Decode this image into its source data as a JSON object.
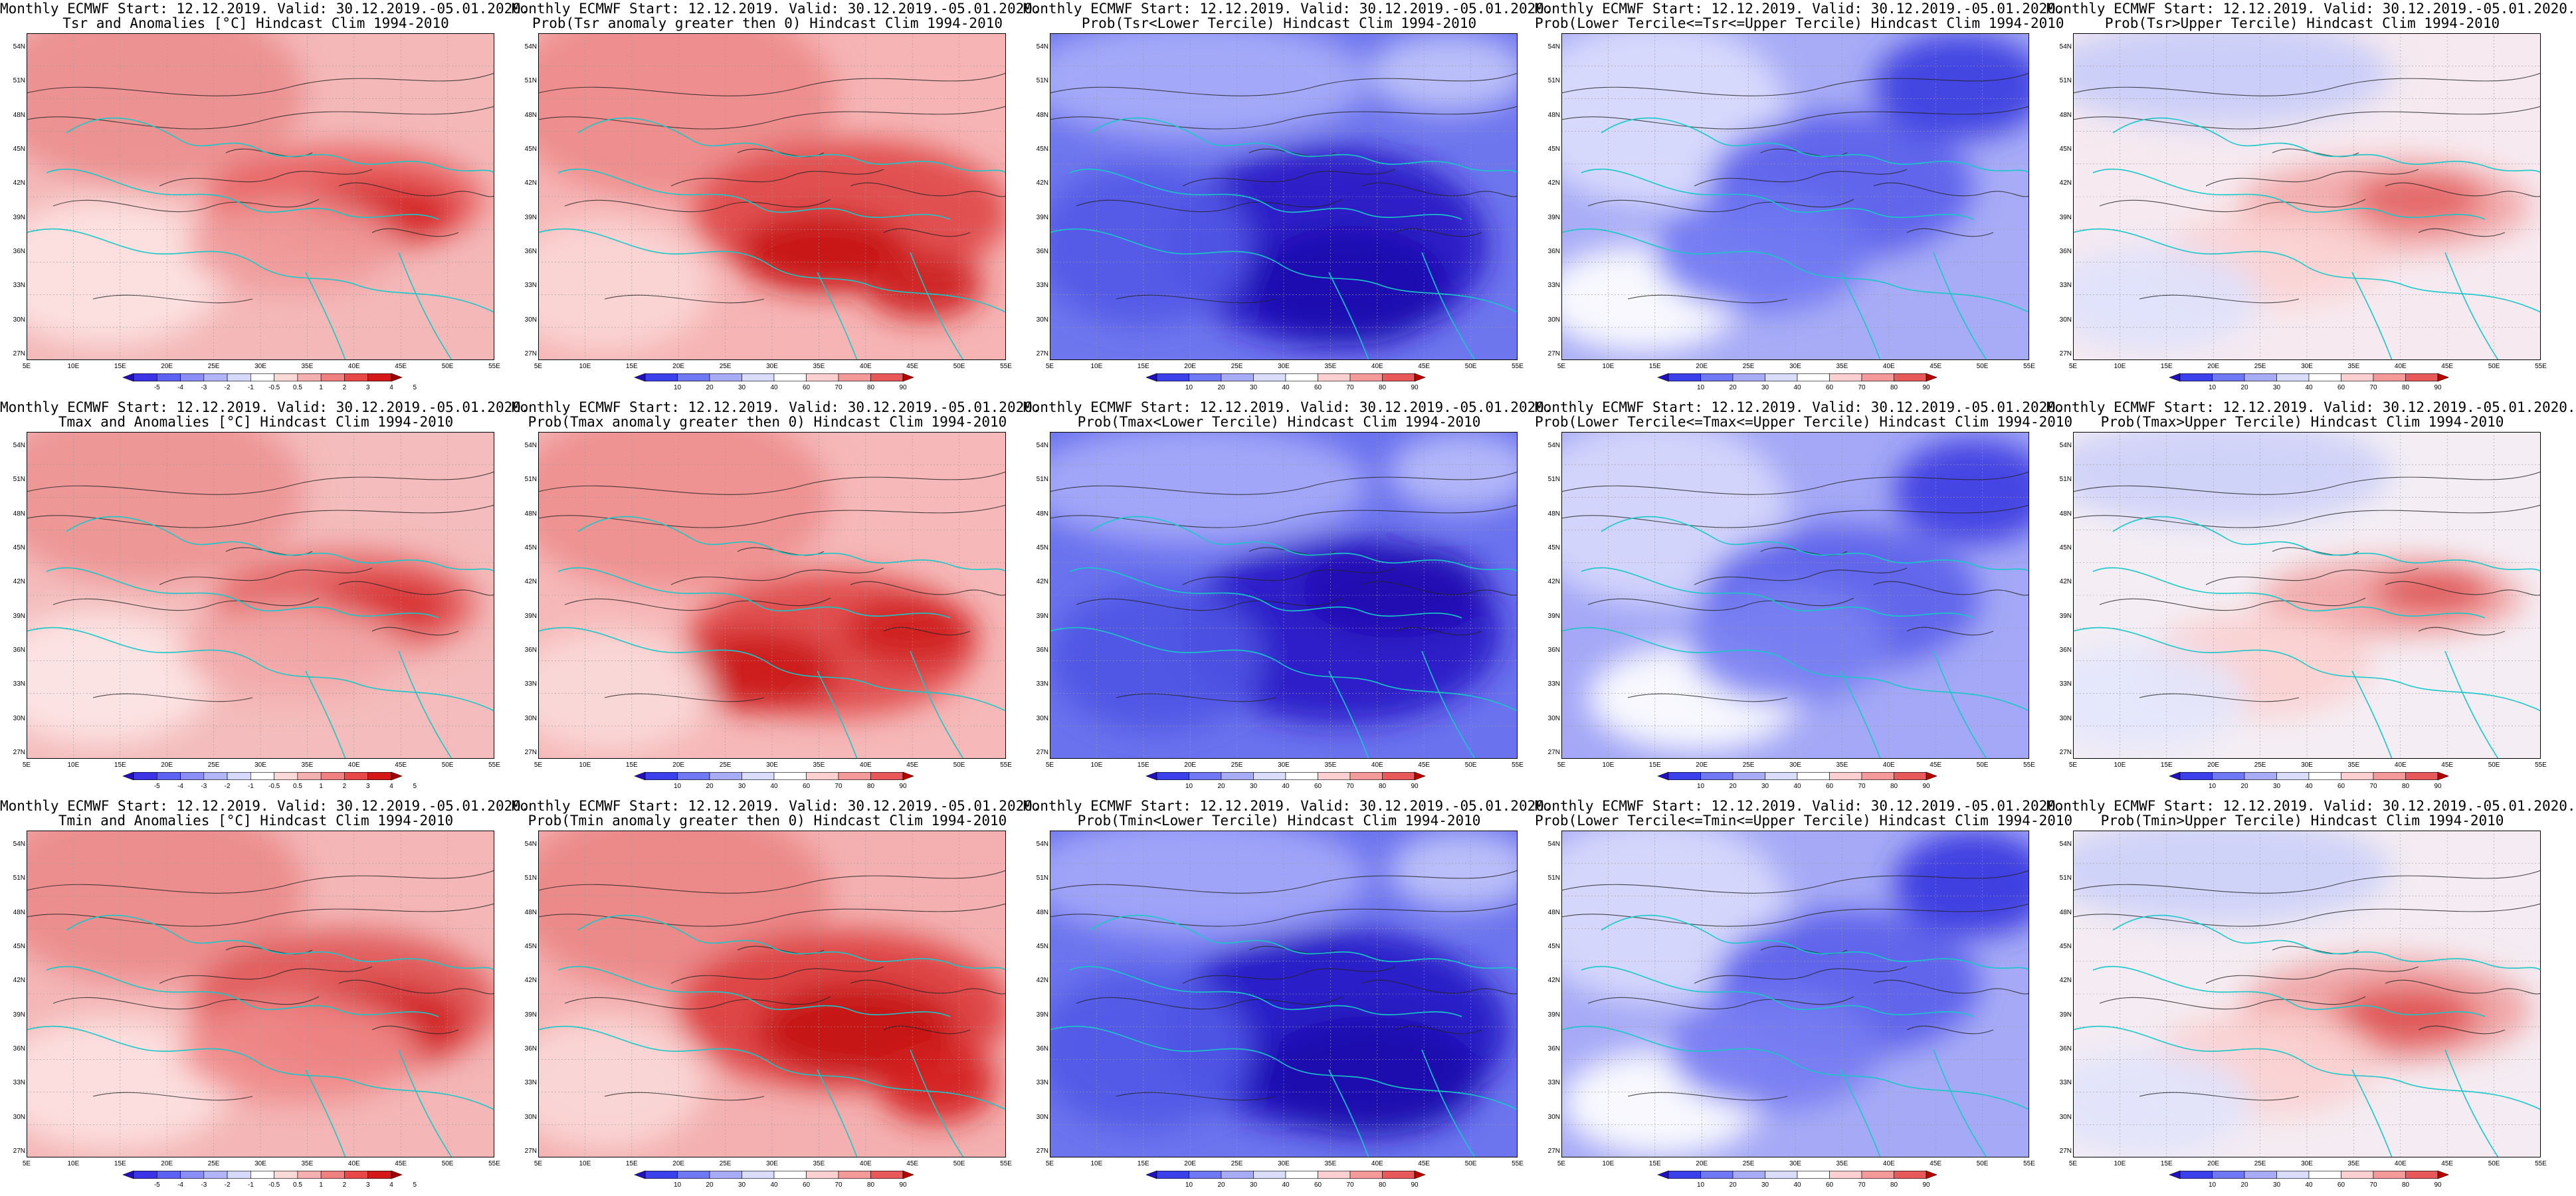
{
  "lat_ticks": [
    "54N",
    "51N",
    "48N",
    "45N",
    "42N",
    "39N",
    "36N",
    "33N",
    "30N",
    "27N"
  ],
  "lon_ticks": [
    "5E",
    "10E",
    "15E",
    "20E",
    "25E",
    "30E",
    "35E",
    "40E",
    "45E",
    "50E",
    "55E"
  ],
  "colorbars": {
    "temp": {
      "labels": [
        "-5",
        "-4",
        "-3",
        "-2",
        "-1",
        "-0.5",
        "0.5",
        "1",
        "2",
        "3",
        "4",
        "5"
      ],
      "colors": [
        "#2010c0",
        "#3a34e6",
        "#5d62f2",
        "#8a8ef6",
        "#b2b4fa",
        "#d6d8fd",
        "#ffffff",
        "#fcd9d9",
        "#f7b0b0",
        "#f08080",
        "#e84848",
        "#d41818",
        "#a00000"
      ]
    },
    "prob": {
      "labels": [
        "10",
        "20",
        "30",
        "40",
        "60",
        "70",
        "80",
        "90"
      ],
      "colors": [
        "#2010c0",
        "#3a40ea",
        "#7078f2",
        "#a8acf8",
        "#dadcfd",
        "#ffffff",
        "#fcd0d0",
        "#f49a9a",
        "#e85a5a",
        "#b80000"
      ]
    }
  },
  "panels": [
    {
      "line1": "Monthly ECMWF Start: 12.12.2019. Valid: 30.12.2019.-05.01.2020.",
      "line2": "Tsr and Anomalies [°C] Hindcast Clim 1994-2010",
      "scheme": "temp",
      "base": "#f4b8b8",
      "blobs": [
        [
          "#ec8e8e",
          180,
          90,
          240,
          140
        ],
        [
          "#e86060",
          480,
          250,
          210,
          80
        ],
        [
          "#d42424",
          530,
          270,
          120,
          45
        ],
        [
          "#fde4e4",
          120,
          360,
          180,
          110
        ],
        [
          "#f09a9a",
          400,
          320,
          160,
          70
        ]
      ]
    },
    {
      "line1": "Monthly ECMWF Start: 12.12.2019. Valid: 30.12.2019.-05.01.2020.",
      "line2": "Prob(Tsr anomaly greater then 0) Hindcast Clim 1994-2010",
      "scheme": "prob",
      "base": "#f6b4b4",
      "blobs": [
        [
          "#ee8a8a",
          200,
          100,
          250,
          150
        ],
        [
          "#e04646",
          470,
          270,
          240,
          110
        ],
        [
          "#c81414",
          430,
          330,
          130,
          60
        ],
        [
          "#fbd6d6",
          100,
          380,
          160,
          100
        ],
        [
          "#cc1c1c",
          580,
          380,
          90,
          50
        ]
      ]
    },
    {
      "line1": "Monthly ECMWF Start: 12.12.2019. Valid: 30.12.2019.-05.01.2020.",
      "line2": "Prob(Tsr<Lower Tercile) Hindcast Clim 1994-2010",
      "scheme": "prob",
      "base": "#6e76ee",
      "blobs": [
        [
          "#a8acf8",
          220,
          70,
          260,
          90
        ],
        [
          "#2616c4",
          420,
          320,
          240,
          150
        ],
        [
          "#1c0ab0",
          450,
          380,
          150,
          90
        ],
        [
          "#5258e6",
          140,
          320,
          160,
          120
        ],
        [
          "#c0c4fa",
          600,
          60,
          120,
          60
        ]
      ]
    },
    {
      "line1": "Monthly ECMWF Start: 12.12.2019. Valid: 30.12.2019.-05.01.2020.",
      "line2": "Prob(Lower Tercile<=Tsr<=Upper Tercile) Hindcast Clim 1994-2010",
      "scheme": "prob",
      "base": "#a8acf6",
      "blobs": [
        [
          "#dadcfd",
          140,
          120,
          200,
          140
        ],
        [
          "#5a60ea",
          420,
          230,
          200,
          110
        ],
        [
          "#3a3ce0",
          600,
          80,
          130,
          80
        ],
        [
          "#ffffff",
          120,
          400,
          150,
          80
        ],
        [
          "#7078f2",
          300,
          330,
          160,
          90
        ]
      ]
    },
    {
      "line1": "Monthly ECMWF Start: 12.12.2019. Valid: 30.12.2019.-05.01.2020.",
      "line2": "Prob(Tsr>Upper Tercile) Hindcast Clim 1994-2010",
      "scheme": "prob",
      "base": "#f6eaf0",
      "blobs": [
        [
          "#c8ccf8",
          220,
          60,
          260,
          80
        ],
        [
          "#f2a6a6",
          470,
          260,
          220,
          70
        ],
        [
          "#e46262",
          520,
          250,
          100,
          40
        ],
        [
          "#fbd2d2",
          300,
          340,
          170,
          70
        ],
        [
          "#dfe2fc",
          120,
          400,
          160,
          80
        ]
      ]
    },
    {
      "line1": "Monthly ECMWF Start: 12.12.2019. Valid: 30.12.2019.-05.01.2020.",
      "line2": "Tmax and Anomalies [°C] Hindcast Clim 1994-2010",
      "scheme": "temp",
      "base": "#f4bcbc",
      "blobs": [
        [
          "#ee9494",
          180,
          90,
          240,
          140
        ],
        [
          "#e46262",
          480,
          260,
          200,
          80
        ],
        [
          "#d83030",
          540,
          260,
          100,
          40
        ],
        [
          "#fde6e6",
          110,
          370,
          170,
          100
        ],
        [
          "#f2a8a8",
          400,
          330,
          170,
          70
        ]
      ]
    },
    {
      "line1": "Monthly ECMWF Start: 12.12.2019. Valid: 30.12.2019.-05.01.2020.",
      "line2": "Prob(Tmax anomaly greater then 0) Hindcast Clim 1994-2010",
      "scheme": "prob",
      "base": "#f6b8b8",
      "blobs": [
        [
          "#ee8e8e",
          200,
          100,
          240,
          140
        ],
        [
          "#e04848",
          440,
          320,
          220,
          110
        ],
        [
          "#cc1a1a",
          330,
          360,
          120,
          60
        ],
        [
          "#fbdada",
          110,
          390,
          150,
          90
        ],
        [
          "#d02020",
          560,
          300,
          100,
          50
        ]
      ]
    },
    {
      "line1": "Monthly ECMWF Start: 12.12.2019. Valid: 30.12.2019.-05.01.2020.",
      "line2": "Prob(Tmax<Lower Tercile) Hindcast Clim 1994-2010",
      "scheme": "prob",
      "base": "#6a72ee",
      "blobs": [
        [
          "#a6aaf8",
          220,
          80,
          260,
          90
        ],
        [
          "#2818c6",
          440,
          300,
          240,
          140
        ],
        [
          "#1e0cb2",
          520,
          240,
          140,
          70
        ],
        [
          "#4e54e4",
          160,
          340,
          160,
          110
        ],
        [
          "#b8bcfa",
          620,
          60,
          110,
          60
        ]
      ]
    },
    {
      "line1": "Monthly ECMWF Start: 12.12.2019. Valid: 30.12.2019.-05.01.2020.",
      "line2": "Prob(Lower Tercile<=Tmax<=Upper Tercile) Hindcast Clim 1994-2010",
      "scheme": "prob",
      "base": "#a4a8f6",
      "blobs": [
        [
          "#d6d8fc",
          140,
          120,
          200,
          140
        ],
        [
          "#5c62ea",
          420,
          250,
          210,
          110
        ],
        [
          "#3c3ee2",
          620,
          90,
          120,
          80
        ],
        [
          "#ffffff",
          200,
          400,
          160,
          80
        ],
        [
          "#7a80f2",
          340,
          320,
          150,
          90
        ]
      ]
    },
    {
      "line1": "Monthly ECMWF Start: 12.12.2019. Valid: 30.12.2019.-05.01.2020.",
      "line2": "Prob(Tmax>Upper Tercile) Hindcast Clim 1994-2010",
      "scheme": "prob",
      "base": "#f4eef4",
      "blobs": [
        [
          "#cdd0f8",
          220,
          60,
          260,
          80
        ],
        [
          "#f2a4a4",
          480,
          250,
          200,
          60
        ],
        [
          "#e05656",
          540,
          240,
          90,
          35
        ],
        [
          "#fbd0d0",
          280,
          350,
          170,
          80
        ],
        [
          "#e4e6fc",
          100,
          400,
          160,
          80
        ]
      ]
    },
    {
      "line1": "Monthly ECMWF Start: 12.12.2019. Valid: 30.12.2019.-05.01.2020.",
      "line2": "Tmin and Anomalies [°C] Hindcast Clim 1994-2010",
      "scheme": "temp",
      "base": "#f4b6b6",
      "blobs": [
        [
          "#ec8a8a",
          180,
          90,
          240,
          140
        ],
        [
          "#e05656",
          480,
          260,
          230,
          110
        ],
        [
          "#d02020",
          520,
          290,
          140,
          60
        ],
        [
          "#fde2e2",
          130,
          380,
          180,
          100
        ],
        [
          "#f08a8a",
          410,
          330,
          180,
          80
        ]
      ]
    },
    {
      "line1": "Monthly ECMWF Start: 12.12.2019. Valid: 30.12.2019.-05.01.2020.",
      "line2": "Prob(Tmin anomaly greater then 0) Hindcast Clim 1994-2010",
      "scheme": "prob",
      "base": "#f4b0b0",
      "blobs": [
        [
          "#ec8686",
          200,
          100,
          240,
          140
        ],
        [
          "#dc3c3c",
          460,
          270,
          250,
          120
        ],
        [
          "#c41010",
          480,
          300,
          150,
          70
        ],
        [
          "#fbd8d8",
          100,
          380,
          150,
          100
        ],
        [
          "#d42020",
          600,
          380,
          90,
          60
        ]
      ]
    },
    {
      "line1": "Monthly ECMWF Start: 12.12.2019. Valid: 30.12.2019.-05.01.2020.",
      "line2": "Prob(Tmin<Lower Tercile) Hindcast Clim 1994-2010",
      "scheme": "prob",
      "base": "#6c74ee",
      "blobs": [
        [
          "#a4a8f8",
          220,
          70,
          260,
          90
        ],
        [
          "#2414c4",
          430,
          300,
          260,
          150
        ],
        [
          "#1a08ae",
          480,
          370,
          170,
          90
        ],
        [
          "#5058e6",
          140,
          330,
          160,
          120
        ],
        [
          "#c0c4fa",
          620,
          60,
          110,
          60
        ]
      ]
    },
    {
      "line1": "Monthly ECMWF Start: 12.12.2019. Valid: 30.12.2019.-05.01.2020.",
      "line2": "Prob(Lower Tercile<=Tmin<=Upper Tercile) Hindcast Clim 1994-2010",
      "scheme": "prob",
      "base": "#a6aaf6",
      "blobs": [
        [
          "#d8dafc",
          140,
          120,
          200,
          140
        ],
        [
          "#5a5eea",
          430,
          230,
          200,
          110
        ],
        [
          "#3838e0",
          620,
          80,
          120,
          80
        ],
        [
          "#ffffff",
          150,
          410,
          150,
          80
        ],
        [
          "#767cf2",
          320,
          330,
          160,
          90
        ]
      ]
    },
    {
      "line1": "Monthly ECMWF Start: 12.12.2019. Valid: 30.12.2019.-05.01.2020.",
      "line2": "Prob(Tmin>Upper Tercile) Hindcast Clim 1994-2010",
      "scheme": "prob",
      "base": "#f4ecf2",
      "blobs": [
        [
          "#ccd0f8",
          220,
          60,
          260,
          80
        ],
        [
          "#f0a0a0",
          470,
          270,
          220,
          80
        ],
        [
          "#e05050",
          500,
          280,
          110,
          45
        ],
        [
          "#fbd0d0",
          290,
          350,
          170,
          80
        ],
        [
          "#e2e4fc",
          110,
          410,
          160,
          80
        ]
      ]
    }
  ]
}
